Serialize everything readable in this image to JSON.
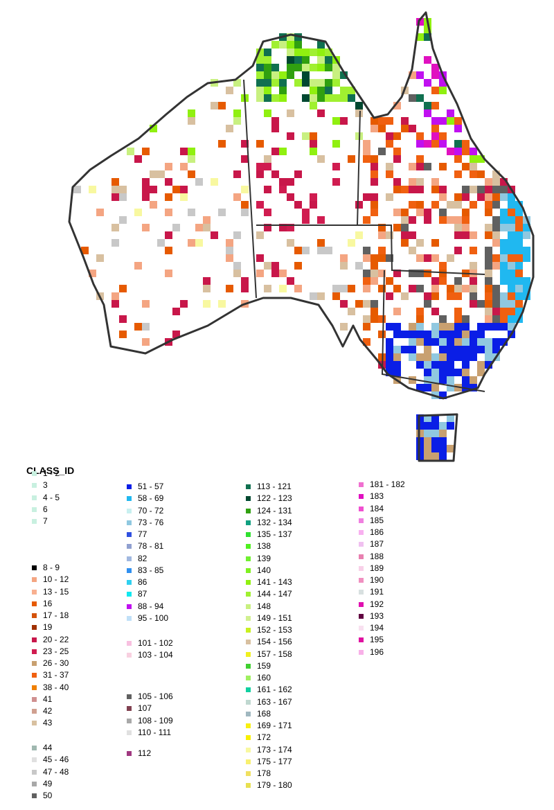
{
  "legend": {
    "title": "CLASS_ID",
    "columns": [
      {
        "groups": [
          {
            "items": [
              {
                "label": "1 - 2",
                "color": "#c8f0e0"
              },
              {
                "label": "3",
                "color": "#c8f0e0"
              },
              {
                "label": "4 - 5",
                "color": "#c8f0e0"
              },
              {
                "label": "6",
                "color": "#c8f0e0"
              },
              {
                "label": "7",
                "color": "#c8f0e0"
              }
            ]
          },
          {
            "items": [
              {
                "label": "8 - 9",
                "color": "#000000"
              },
              {
                "label": "10 - 12",
                "color": "#f4a582"
              },
              {
                "label": "13 - 15",
                "color": "#f8b090"
              },
              {
                "label": "16",
                "color": "#e65a00"
              },
              {
                "label": "17 - 18",
                "color": "#d4520a"
              },
              {
                "label": "19",
                "color": "#a03000"
              },
              {
                "label": "20 - 22",
                "color": "#c8174a"
              },
              {
                "label": "23 - 25",
                "color": "#d01c50"
              },
              {
                "label": "26 - 30",
                "color": "#c8a070"
              },
              {
                "label": "31 - 37",
                "color": "#f06010"
              },
              {
                "label": "38 - 40",
                "color": "#f08000"
              },
              {
                "label": "41",
                "color": "#d09090"
              },
              {
                "label": "42",
                "color": "#d0a090"
              },
              {
                "label": "43",
                "color": "#d8c0a0"
              }
            ]
          },
          {
            "items": [
              {
                "label": "44",
                "color": "#a0b8b0"
              },
              {
                "label": "45 - 46",
                "color": "#e0e0e0"
              },
              {
                "label": "47 - 48",
                "color": "#c8c8c8"
              },
              {
                "label": "49",
                "color": "#a8a8a8"
              },
              {
                "label": "50",
                "color": "#606060"
              }
            ]
          }
        ]
      },
      {
        "groups": [
          {
            "items": [
              {
                "label": "51 - 57",
                "color": "#0a1ee6"
              },
              {
                "label": "58 - 69",
                "color": "#20b8f0"
              },
              {
                "label": "70 - 72",
                "color": "#c8f0f0"
              },
              {
                "label": "73 - 76",
                "color": "#90c8e0"
              },
              {
                "label": "77",
                "color": "#3050e0"
              },
              {
                "label": "78 - 81",
                "color": "#90a0d0"
              },
              {
                "label": "82",
                "color": "#a0b8e0"
              },
              {
                "label": "83 - 85",
                "color": "#3090f0"
              },
              {
                "label": "86",
                "color": "#30d0f0"
              },
              {
                "label": "87",
                "color": "#10e8f0"
              },
              {
                "label": "88 - 94",
                "color": "#c010f0"
              },
              {
                "label": "95 - 100",
                "color": "#c0e0f8"
              }
            ]
          },
          {
            "items": [
              {
                "label": "101 - 102",
                "color": "#f8c0e0"
              },
              {
                "label": "103 - 104",
                "color": "#f8d0e0"
              }
            ]
          },
          {
            "items": [
              {
                "label": "105 - 106",
                "color": "#606060"
              },
              {
                "label": "107",
                "color": "#804050"
              },
              {
                "label": "108 - 109",
                "color": "#a8a8a8"
              },
              {
                "label": "110 - 111",
                "color": "#e0e0e0"
              }
            ]
          },
          {
            "items": [
              {
                "label": "112",
                "color": "#a03880"
              }
            ]
          }
        ]
      },
      {
        "groups": [
          {
            "items": [
              {
                "label": "113 - 121",
                "color": "#107050"
              },
              {
                "label": "122 - 123",
                "color": "#004830"
              },
              {
                "label": "124 - 131",
                "color": "#30a010"
              },
              {
                "label": "132 - 134",
                "color": "#10a080"
              },
              {
                "label": "135 - 137",
                "color": "#30e030"
              },
              {
                "label": "138",
                "color": "#50f020"
              },
              {
                "label": "139",
                "color": "#70f030"
              },
              {
                "label": "140",
                "color": "#80f020"
              },
              {
                "label": "141 - 143",
                "color": "#90f010"
              },
              {
                "label": "144 - 147",
                "color": "#a0f030"
              },
              {
                "label": "148",
                "color": "#c8f080"
              },
              {
                "label": "149 - 151",
                "color": "#d0f090"
              },
              {
                "label": "152 - 153",
                "color": "#c8f020"
              },
              {
                "label": "154 - 156",
                "color": "#d8c0a0"
              },
              {
                "label": "157 - 158",
                "color": "#f0f020"
              },
              {
                "label": "159",
                "color": "#40d030"
              },
              {
                "label": "160",
                "color": "#a0f060"
              },
              {
                "label": "161 - 162",
                "color": "#10d0a0"
              },
              {
                "label": "163 - 167",
                "color": "#c0d8d0"
              },
              {
                "label": "168",
                "color": "#a0b8c0"
              },
              {
                "label": "169 - 171",
                "color": "#f8f010"
              },
              {
                "label": "172",
                "color": "#f8f000"
              },
              {
                "label": "173 - 174",
                "color": "#f8f8a0"
              },
              {
                "label": "175 - 177",
                "color": "#f8f070"
              },
              {
                "label": "178",
                "color": "#f0e060"
              },
              {
                "label": "179 - 180",
                "color": "#e8e050"
              }
            ]
          }
        ]
      },
      {
        "groups": [
          {
            "items": [
              {
                "label": "181 - 182",
                "color": "#f070d0"
              },
              {
                "label": "183",
                "color": "#e010c0"
              },
              {
                "label": "184",
                "color": "#f050d0"
              },
              {
                "label": "185",
                "color": "#f080e0"
              },
              {
                "label": "186",
                "color": "#f8b0f0"
              },
              {
                "label": "187",
                "color": "#f0c0f0"
              },
              {
                "label": "188",
                "color": "#e880b0"
              },
              {
                "label": "189",
                "color": "#f8d0e8"
              },
              {
                "label": "190",
                "color": "#f090c0"
              },
              {
                "label": "191",
                "color": "#d8e0e0"
              },
              {
                "label": "192",
                "color": "#e010b0"
              },
              {
                "label": "193",
                "color": "#600040"
              },
              {
                "label": "194",
                "color": "#f8e0f0"
              },
              {
                "label": "195",
                "color": "#e010a0"
              },
              {
                "label": "196",
                "color": "#f8b0e8"
              }
            ]
          }
        ]
      }
    ]
  }
}
